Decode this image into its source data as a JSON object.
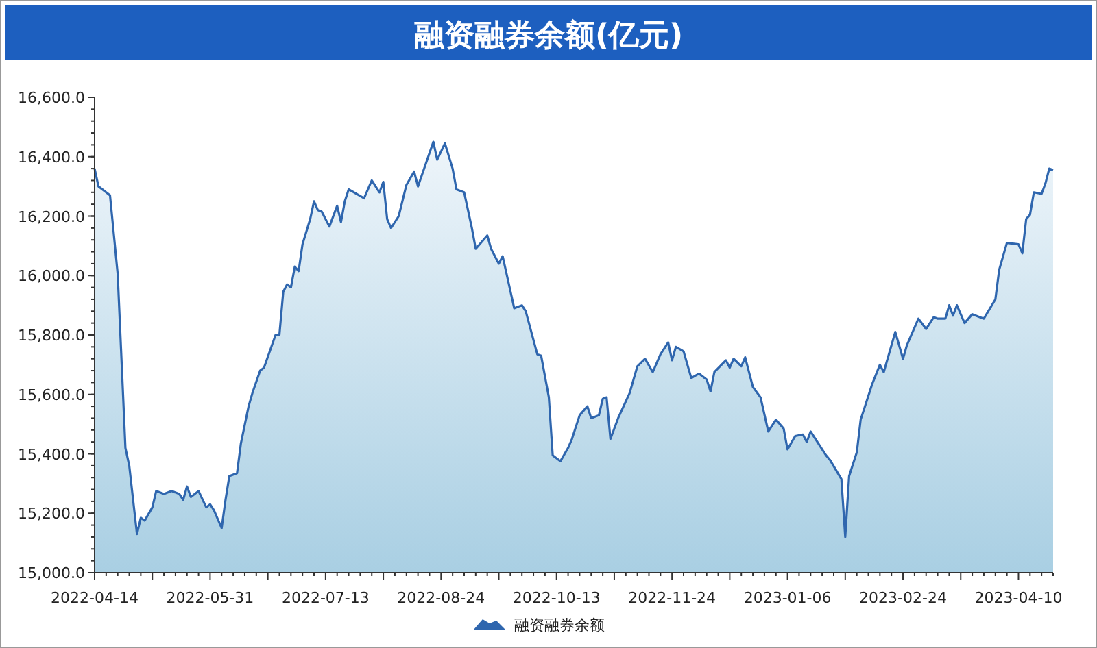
{
  "chart_data": {
    "type": "area",
    "title": "融资融券余额(亿元)",
    "legend": "bottom",
    "grid": false,
    "categories": [
      "2022-04-14",
      null,
      null,
      null,
      null,
      null,
      null,
      null,
      null,
      null,
      null,
      null,
      null,
      null,
      null,
      null,
      null,
      null,
      null,
      null,
      null,
      null,
      null,
      null,
      null,
      null,
      null,
      null,
      null,
      null,
      "2022-05-31",
      null,
      null,
      null,
      null,
      null,
      null,
      null,
      null,
      null,
      null,
      null,
      null,
      null,
      null,
      null,
      null,
      null,
      null,
      null,
      null,
      null,
      null,
      null,
      null,
      null,
      null,
      null,
      null,
      null,
      "2022-07-13",
      null,
      null,
      null,
      null,
      null,
      null,
      null,
      null,
      null,
      null,
      null,
      null,
      null,
      null,
      null,
      null,
      null,
      null,
      null,
      null,
      null,
      null,
      null,
      null,
      null,
      null,
      null,
      null,
      null,
      "2022-08-24",
      null,
      null,
      null,
      null,
      null,
      null,
      null,
      null,
      null,
      null,
      null,
      null,
      null,
      null,
      null,
      null,
      null,
      null,
      null,
      null,
      null,
      null,
      null,
      null,
      null,
      null,
      null,
      null,
      null,
      "2022-10-13",
      null,
      null,
      null,
      null,
      null,
      null,
      null,
      null,
      null,
      null,
      null,
      null,
      null,
      null,
      null,
      null,
      null,
      null,
      null,
      null,
      null,
      null,
      null,
      null,
      null,
      null,
      null,
      null,
      null,
      "2022-11-24",
      null,
      null,
      null,
      null,
      null,
      null,
      null,
      null,
      null,
      null,
      null,
      null,
      null,
      null,
      null,
      null,
      null,
      null,
      null,
      null,
      null,
      null,
      null,
      null,
      null,
      null,
      null,
      null,
      null,
      "2023-01-06",
      null,
      null,
      null,
      null,
      null,
      null,
      null,
      null,
      null,
      null,
      null,
      null,
      null,
      null,
      null,
      null,
      null,
      null,
      null,
      null,
      null,
      null,
      null,
      null,
      null,
      null,
      null,
      null,
      null,
      "2023-02-24",
      null,
      null,
      null,
      null,
      null,
      null,
      null,
      null,
      null,
      null,
      null,
      null,
      null,
      null,
      null,
      null,
      null,
      null,
      null,
      null,
      null,
      null,
      null,
      null,
      null,
      null,
      null,
      null,
      null,
      "2023-04-10",
      null,
      null,
      null,
      null,
      null,
      null,
      null,
      null,
      null
    ],
    "ylim": [
      15000,
      16600
    ],
    "yticks": [
      {
        "value": 15000,
        "label": "15,000.0"
      },
      {
        "value": 15200,
        "label": "15,200.0"
      },
      {
        "value": 15400,
        "label": "15,400.0"
      },
      {
        "value": 15600,
        "label": "15,600.0"
      },
      {
        "value": 15800,
        "label": "15,800.0"
      },
      {
        "value": 16000,
        "label": "16,000.0"
      },
      {
        "value": 16200,
        "label": "16,200.0"
      },
      {
        "value": 16400,
        "label": "16,400.0"
      },
      {
        "value": 16600,
        "label": "16,600.0"
      }
    ],
    "series": [
      {
        "name": "融资融券余额",
        "color": "#2f66ae",
        "values": [
          16360,
          16300,
          null,
          16280,
          16270,
          null,
          16005,
          null,
          15420,
          15360,
          null,
          15130,
          15185,
          15175,
          null,
          15220,
          15275,
          null,
          15265,
          null,
          15275,
          null,
          15265,
          15245,
          15290,
          15255,
          null,
          15275,
          null,
          15220,
          15230,
          15210,
          null,
          15150,
          15245,
          15325,
          null,
          15335,
          15435,
          null,
          15560,
          15605,
          null,
          15680,
          15690,
          null,
          null,
          15800,
          15800,
          15945,
          15970,
          15960,
          16030,
          16015,
          16105,
          null,
          16190,
          16250,
          16220,
          16215,
          null,
          16165,
          null,
          16235,
          16180,
          16250,
          16290,
          null,
          16275,
          null,
          16260,
          null,
          16320,
          null,
          16280,
          16315,
          16190,
          16160,
          null,
          16200,
          null,
          16305,
          null,
          16350,
          16300,
          null,
          null,
          null,
          16450,
          16390,
          null,
          16445,
          null,
          16360,
          16290,
          null,
          16280,
          null,
          16160,
          16090,
          null,
          null,
          16135,
          16090,
          null,
          16040,
          16065,
          null,
          null,
          15890,
          null,
          15900,
          15880,
          null,
          null,
          15735,
          15730,
          null,
          15590,
          15395,
          null,
          15375,
          null,
          15420,
          15450,
          null,
          15530,
          null,
          15560,
          15520,
          null,
          15530,
          15585,
          15590,
          15450,
          null,
          15520,
          null,
          null,
          15605,
          null,
          15695,
          null,
          15720,
          null,
          15675,
          null,
          15735,
          null,
          15775,
          15715,
          15760,
          null,
          15745,
          null,
          15655,
          null,
          15670,
          null,
          15650,
          15610,
          15675,
          null,
          null,
          15715,
          15690,
          15720,
          null,
          15695,
          15725,
          null,
          15625,
          null,
          15590,
          null,
          15475,
          null,
          15515,
          null,
          15485,
          15415,
          null,
          15460,
          null,
          15465,
          15440,
          15475,
          null,
          null,
          null,
          15395,
          15380,
          null,
          null,
          15315,
          15120,
          15325,
          null,
          15405,
          15515,
          null,
          null,
          15635,
          null,
          15700,
          15675,
          null,
          null,
          15810,
          null,
          15720,
          15765,
          null,
          null,
          15855,
          null,
          15820,
          null,
          15860,
          15855,
          null,
          15855,
          15900,
          15865,
          15900,
          null,
          15840,
          null,
          15870,
          null,
          null,
          15855,
          null,
          null,
          15920,
          16020,
          null,
          16110,
          null,
          null,
          16105,
          16075,
          16190,
          16205,
          16280,
          null,
          16275,
          16310,
          16360,
          16355
        ]
      }
    ]
  }
}
